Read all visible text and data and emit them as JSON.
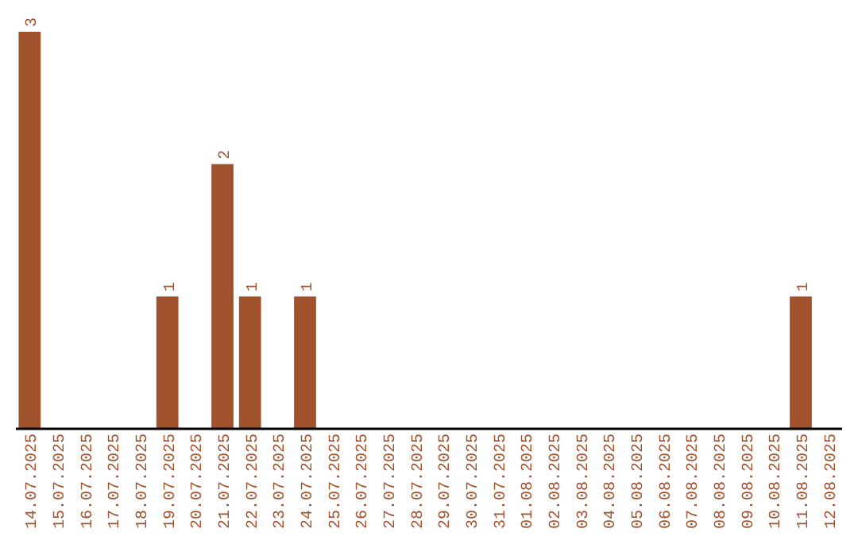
{
  "chart_data": {
    "type": "bar",
    "categories": [
      "14.07.2025",
      "15.07.2025",
      "16.07.2025",
      "17.07.2025",
      "18.07.2025",
      "19.07.2025",
      "20.07.2025",
      "21.07.2025",
      "22.07.2025",
      "23.07.2025",
      "24.07.2025",
      "25.07.2025",
      "26.07.2025",
      "27.07.2025",
      "28.07.2025",
      "29.07.2025",
      "30.07.2025",
      "31.07.2025",
      "01.08.2025",
      "02.08.2025",
      "03.08.2025",
      "04.08.2025",
      "05.08.2025",
      "06.08.2025",
      "07.08.2025",
      "08.08.2025",
      "09.08.2025",
      "10.08.2025",
      "11.08.2025",
      "12.08.2025"
    ],
    "values": [
      3,
      0,
      0,
      0,
      0,
      1,
      0,
      2,
      1,
      0,
      1,
      0,
      0,
      0,
      0,
      0,
      0,
      0,
      0,
      0,
      0,
      0,
      0,
      0,
      0,
      0,
      0,
      0,
      1,
      0
    ],
    "value_labels": [
      "3",
      null,
      null,
      null,
      null,
      "1",
      null,
      "2",
      "1",
      null,
      "1",
      null,
      null,
      null,
      null,
      null,
      null,
      null,
      null,
      null,
      null,
      null,
      null,
      null,
      null,
      null,
      null,
      null,
      "1",
      null
    ],
    "color": "#a0522d",
    "tick_labels": "x"
  }
}
